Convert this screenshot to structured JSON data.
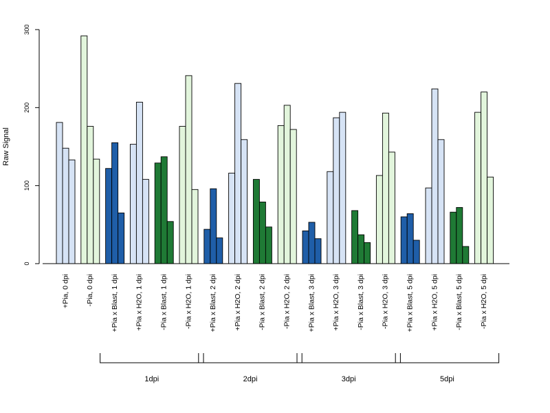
{
  "chart_data": {
    "type": "bar",
    "title": "",
    "ylabel": "Raw Signal",
    "xlabel": "",
    "ylim": [
      0,
      300
    ],
    "yticks": [
      0,
      100,
      200,
      300
    ],
    "grid": false,
    "legend": "none",
    "categories": [
      "+Pia, 0 dpi",
      "-Pia, 0 dpi",
      "+Pia x Blast, 1 dpi",
      "+Pia x H2O, 1 dpi",
      "-Pia x Blast, 1 dpi",
      "-Pia x H2O, 1 dpi",
      "+Pia x Blast, 2 dpi",
      "+Pia x H2O, 2 dpi",
      "-Pia x Blast, 2 dpi",
      "-Pia x H2O, 2 dpi",
      "+Pia x Blast, 3 dpi",
      "+Pia x H2O, 3 dpi",
      "-Pia x Blast, 3 dpi",
      "-Pia x H2O, 3 dpi",
      "+Pia x Blast, 5 dpi",
      "+Pia x H2O, 5 dpi",
      "-Pia x Blast, 5 dpi",
      "-Pia x H2O, 5 dpi"
    ],
    "replicates": [
      [
        181,
        148,
        133
      ],
      [
        292,
        176,
        134
      ],
      [
        122,
        155,
        65
      ],
      [
        153,
        207,
        108
      ],
      [
        129,
        137,
        54
      ],
      [
        176,
        241,
        95
      ],
      [
        44,
        96,
        33
      ],
      [
        116,
        231,
        159
      ],
      [
        108,
        79,
        47
      ],
      [
        177,
        203,
        172
      ],
      [
        42,
        53,
        32
      ],
      [
        118,
        187,
        194
      ],
      [
        68,
        37,
        27
      ],
      [
        113,
        193,
        143
      ],
      [
        60,
        64,
        30
      ],
      [
        97,
        224,
        159
      ],
      [
        66,
        72,
        22
      ],
      [
        194,
        220,
        111
      ]
    ],
    "bar_colors": [
      "#d6e3f5",
      "#e2f5dc",
      "#1f5ea8",
      "#d6e3f5",
      "#1f7a35",
      "#e2f5dc",
      "#1f5ea8",
      "#d6e3f5",
      "#1f7a35",
      "#e2f5dc",
      "#1f5ea8",
      "#d6e3f5",
      "#1f7a35",
      "#e2f5dc",
      "#1f5ea8",
      "#d6e3f5",
      "#1f7a35",
      "#e2f5dc"
    ],
    "groups": [
      {
        "label": "1dpi",
        "from_index": 2,
        "to_index": 5
      },
      {
        "label": "2dpi",
        "from_index": 6,
        "to_index": 9
      },
      {
        "label": "3dpi",
        "from_index": 10,
        "to_index": 13
      },
      {
        "label": "5dpi",
        "from_index": 14,
        "to_index": 17
      }
    ]
  }
}
